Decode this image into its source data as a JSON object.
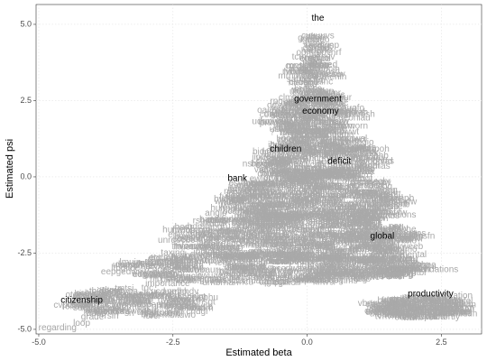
{
  "chart_data": {
    "type": "scatter",
    "title": "",
    "xlabel": "Estimated beta",
    "ylabel": "Estimated psi",
    "xlim": [
      -5.05,
      3.25
    ],
    "ylim": [
      -5.15,
      5.65
    ],
    "x_ticks": [
      -5.0,
      -2.5,
      0.0,
      2.5
    ],
    "y_ticks": [
      -5.0,
      -2.5,
      0.0,
      2.5,
      5.0
    ],
    "x_tick_labels": [
      "-5.0",
      "-2.5",
      "0.0",
      "2.5"
    ],
    "y_tick_labels": [
      "-5.0",
      "-2.5",
      "0.0",
      "2.5",
      "5.0"
    ],
    "grid": true,
    "highlight_color": "#000000",
    "background_color": "#a6a6a6",
    "highlighted_words": [
      {
        "label": "the",
        "x": 0.2,
        "y": 5.2
      },
      {
        "label": "government",
        "x": 0.2,
        "y": 2.55
      },
      {
        "label": "economy",
        "x": 0.25,
        "y": 2.15
      },
      {
        "label": "children",
        "x": -0.4,
        "y": 0.9
      },
      {
        "label": "bank",
        "x": -1.3,
        "y": -0.05
      },
      {
        "label": "deficit",
        "x": 0.6,
        "y": 0.5
      },
      {
        "label": "global",
        "x": 1.4,
        "y": -1.95
      },
      {
        "label": "productivity",
        "x": 2.3,
        "y": -3.85
      },
      {
        "label": "citizenship",
        "x": -4.2,
        "y": -4.05
      }
    ],
    "background_words": [
      {
        "label": "a",
        "x": 0.2,
        "y": 4.0
      },
      {
        "label": "it",
        "x": -0.05,
        "y": 3.45
      },
      {
        "label": "is",
        "x": 0.1,
        "y": 3.85
      },
      {
        "label": "that",
        "x": 0.05,
        "y": 3.7
      },
      {
        "label": "ministers",
        "x": -0.35,
        "y": 2.05
      },
      {
        "label": "ministers",
        "x": -0.15,
        "y": 1.9
      },
      {
        "label": "hear",
        "x": -2.3,
        "y": -1.65
      },
      {
        "label": "anglo",
        "x": -1.7,
        "y": -1.2
      },
      {
        "label": "widen",
        "x": -1.4,
        "y": -0.85
      },
      {
        "label": "model",
        "x": -2.0,
        "y": -1.9
      },
      {
        "label": "taxing",
        "x": -2.5,
        "y": -2.5
      },
      {
        "label": "importance",
        "x": -2.6,
        "y": -3.5
      },
      {
        "label": "borrowed",
        "x": -3.2,
        "y": -3.9
      },
      {
        "label": "society",
        "x": -4.1,
        "y": -4.3
      },
      {
        "label": "grade",
        "x": -4.0,
        "y": -4.6
      },
      {
        "label": "loop",
        "x": -4.2,
        "y": -4.8
      },
      {
        "label": "regarding",
        "x": -4.65,
        "y": -4.95
      },
      {
        "label": "cures",
        "x": 0.95,
        "y": 0.9
      },
      {
        "label": "elections",
        "x": 1.7,
        "y": -1.25
      },
      {
        "label": "environmental",
        "x": 1.7,
        "y": -2.55
      },
      {
        "label": "recommendations",
        "x": 2.15,
        "y": -3.05
      },
      {
        "label": "innovation",
        "x": 2.7,
        "y": -3.9
      },
      {
        "label": "shortly",
        "x": 2.6,
        "y": -4.6
      },
      {
        "label": "?",
        "x": -0.65,
        "y": 1.45
      }
    ]
  }
}
